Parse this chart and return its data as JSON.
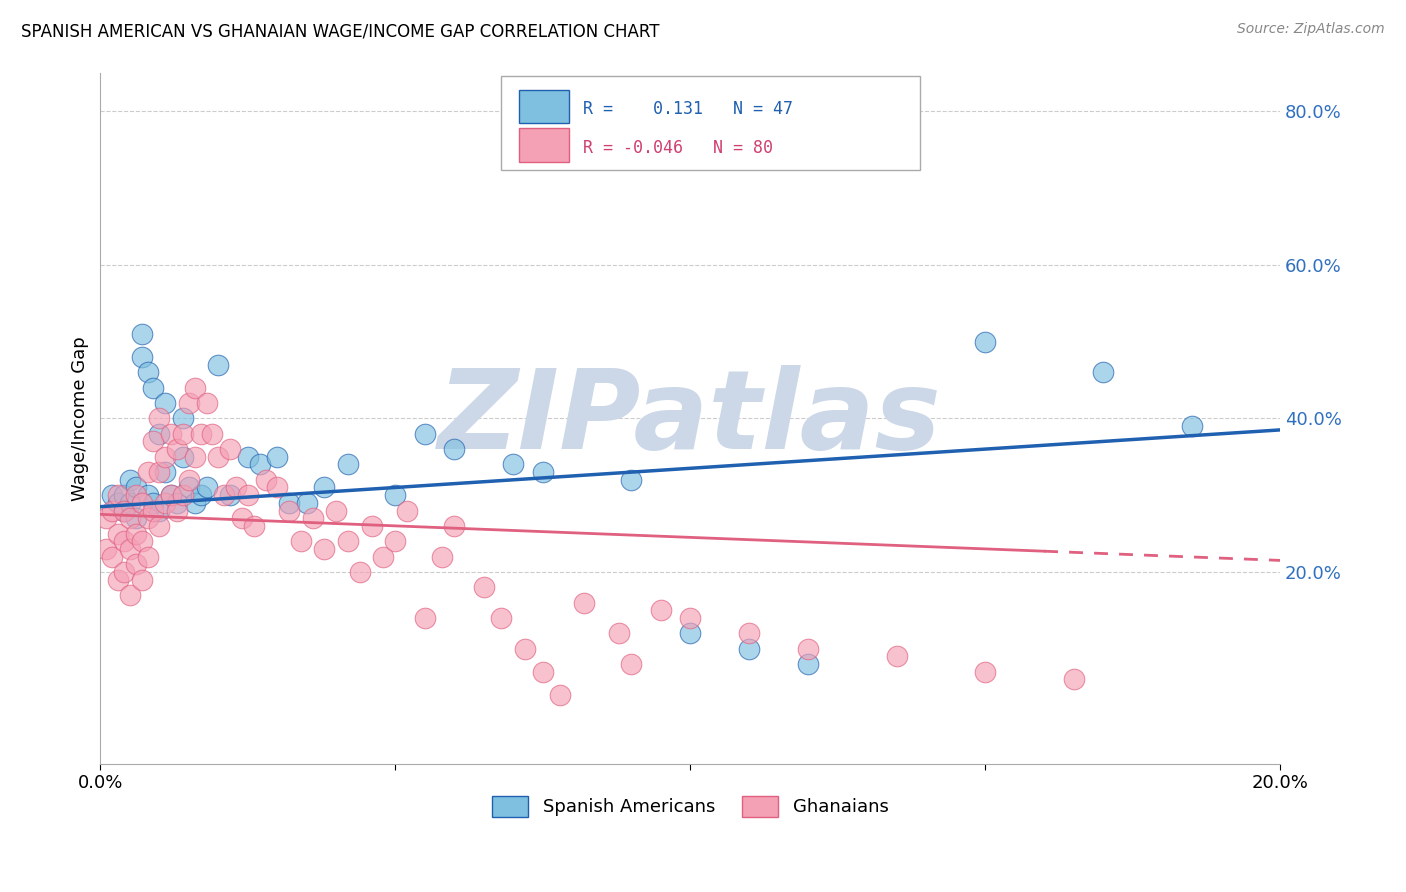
{
  "title": "SPANISH AMERICAN VS GHANAIAN WAGE/INCOME GAP CORRELATION CHART",
  "source": "Source: ZipAtlas.com",
  "ylabel": "Wage/Income Gap",
  "xlim": [
    0.0,
    0.2
  ],
  "ylim": [
    -0.05,
    0.85
  ],
  "y_tick_vals": [
    0.2,
    0.4,
    0.6,
    0.8
  ],
  "y_tick_labs": [
    "20.0%",
    "40.0%",
    "60.0%",
    "80.0%"
  ],
  "x_tick_vals": [
    0.0,
    0.05,
    0.1,
    0.15,
    0.2
  ],
  "x_tick_labs": [
    "0.0%",
    "",
    "",
    "",
    "20.0%"
  ],
  "color_blue": "#7fbfdf",
  "color_blue_line": "#2060b0",
  "color_pink": "#f4a0b5",
  "color_pink_line": "#e06080",
  "watermark": "ZIPatlas",
  "watermark_color": "#ccd8e8",
  "blue_scatter_x": [
    0.002,
    0.003,
    0.004,
    0.004,
    0.005,
    0.005,
    0.006,
    0.006,
    0.007,
    0.007,
    0.008,
    0.008,
    0.009,
    0.009,
    0.01,
    0.01,
    0.011,
    0.011,
    0.012,
    0.013,
    0.014,
    0.014,
    0.015,
    0.016,
    0.017,
    0.018,
    0.02,
    0.022,
    0.025,
    0.027,
    0.03,
    0.032,
    0.035,
    0.038,
    0.042,
    0.05,
    0.055,
    0.06,
    0.07,
    0.075,
    0.09,
    0.1,
    0.11,
    0.12,
    0.15,
    0.17,
    0.185
  ],
  "blue_scatter_y": [
    0.3,
    0.29,
    0.3,
    0.28,
    0.32,
    0.29,
    0.27,
    0.31,
    0.51,
    0.48,
    0.46,
    0.3,
    0.44,
    0.29,
    0.38,
    0.28,
    0.33,
    0.42,
    0.3,
    0.29,
    0.4,
    0.35,
    0.31,
    0.29,
    0.3,
    0.31,
    0.47,
    0.3,
    0.35,
    0.34,
    0.35,
    0.29,
    0.29,
    0.31,
    0.34,
    0.3,
    0.38,
    0.36,
    0.34,
    0.33,
    0.32,
    0.12,
    0.1,
    0.08,
    0.5,
    0.46,
    0.39
  ],
  "pink_scatter_x": [
    0.001,
    0.001,
    0.002,
    0.002,
    0.003,
    0.003,
    0.003,
    0.004,
    0.004,
    0.004,
    0.005,
    0.005,
    0.005,
    0.006,
    0.006,
    0.006,
    0.007,
    0.007,
    0.007,
    0.008,
    0.008,
    0.008,
    0.009,
    0.009,
    0.01,
    0.01,
    0.01,
    0.011,
    0.011,
    0.012,
    0.012,
    0.013,
    0.013,
    0.014,
    0.014,
    0.015,
    0.015,
    0.016,
    0.016,
    0.017,
    0.018,
    0.019,
    0.02,
    0.021,
    0.022,
    0.023,
    0.024,
    0.025,
    0.026,
    0.028,
    0.03,
    0.032,
    0.034,
    0.036,
    0.038,
    0.04,
    0.042,
    0.044,
    0.046,
    0.048,
    0.05,
    0.052,
    0.055,
    0.058,
    0.06,
    0.065,
    0.068,
    0.072,
    0.075,
    0.078,
    0.082,
    0.088,
    0.09,
    0.095,
    0.1,
    0.11,
    0.12,
    0.135,
    0.15,
    0.165
  ],
  "pink_scatter_y": [
    0.27,
    0.23,
    0.28,
    0.22,
    0.3,
    0.25,
    0.19,
    0.28,
    0.24,
    0.2,
    0.27,
    0.23,
    0.17,
    0.3,
    0.25,
    0.21,
    0.29,
    0.24,
    0.19,
    0.33,
    0.27,
    0.22,
    0.37,
    0.28,
    0.4,
    0.33,
    0.26,
    0.35,
    0.29,
    0.38,
    0.3,
    0.36,
    0.28,
    0.38,
    0.3,
    0.42,
    0.32,
    0.44,
    0.35,
    0.38,
    0.42,
    0.38,
    0.35,
    0.3,
    0.36,
    0.31,
    0.27,
    0.3,
    0.26,
    0.32,
    0.31,
    0.28,
    0.24,
    0.27,
    0.23,
    0.28,
    0.24,
    0.2,
    0.26,
    0.22,
    0.24,
    0.28,
    0.14,
    0.22,
    0.26,
    0.18,
    0.14,
    0.1,
    0.07,
    0.04,
    0.16,
    0.12,
    0.08,
    0.15,
    0.14,
    0.12,
    0.1,
    0.09,
    0.07,
    0.06
  ]
}
